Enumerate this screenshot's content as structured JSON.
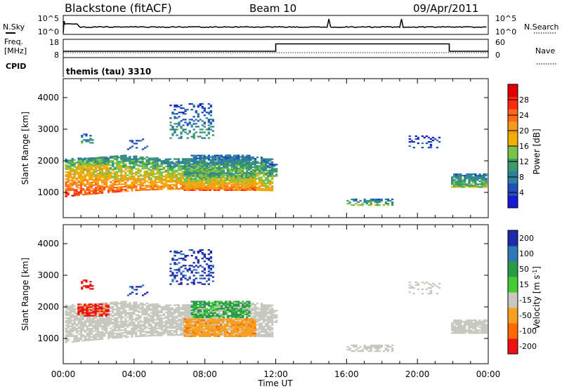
{
  "header": {
    "station": "Blackstone (fitACF)",
    "beam": "Beam 10",
    "date": "09/Apr/2011"
  },
  "panels": {
    "nsky": {
      "label": "N.Sky",
      "ticks_left": [
        "10^5",
        "10^0"
      ],
      "ticks_right": [
        "10^5",
        "10^0"
      ],
      "legend": "N.Search"
    },
    "freq": {
      "label": "Freq.",
      "unit": "[MHz]",
      "ticks_left": [
        "18",
        "8"
      ],
      "ticks_right": [
        "60",
        "0"
      ],
      "legend": "Nave"
    },
    "cpid": {
      "label": "CPID",
      "value": "themis (tau) 3310"
    }
  },
  "colors": {
    "power": [
      "#1a1ad0",
      "#1f4fbf",
      "#2f7f9f",
      "#3a9a6a",
      "#7cc24a",
      "#f0b000",
      "#f59a1c",
      "#ff6a1a",
      "#ff2a10",
      "#e00000"
    ],
    "velocity": [
      "#ee1111",
      "#ff6a00",
      "#f7a020",
      "#c8c8c0",
      "#44cc33",
      "#2a9a4a",
      "#2f78b8",
      "#1f2aaa"
    ],
    "ground": "#c8c8c0"
  },
  "chart_data": [
    {
      "type": "heatmap",
      "name": "power",
      "ylabel": "Slant Range [km]",
      "yticks": [
        "1000",
        "2000",
        "3000",
        "4000"
      ],
      "ylim": [
        200,
        4600
      ],
      "xlim": [
        0,
        24
      ],
      "xticks": [
        "00:00",
        "04:00",
        "08:00",
        "12:00",
        "16:00",
        "20:00",
        "00:00"
      ],
      "colorbar": {
        "label": "Power [dB]",
        "ticks": [
          "4",
          "8",
          "12",
          "16",
          "20",
          "24",
          "28"
        ],
        "range": [
          0,
          32
        ]
      }
    },
    {
      "type": "heatmap",
      "name": "velocity",
      "ylabel": "Slant Range [km]",
      "yticks": [
        "1000",
        "2000",
        "3000",
        "4000"
      ],
      "ylim": [
        200,
        4600
      ],
      "xlim": [
        0,
        24
      ],
      "xticks": [
        "00:00",
        "04:00",
        "08:00",
        "12:00",
        "16:00",
        "20:00",
        "00:00"
      ],
      "xlabel": "Time UT",
      "colorbar": {
        "label": "Velocity",
        "unit": "[m s",
        "unit_sup": "-1",
        "unit_end": "]",
        "ticks": [
          "-200",
          "-100",
          "-50",
          "-15",
          "15",
          "50",
          "100",
          "200"
        ]
      }
    }
  ]
}
